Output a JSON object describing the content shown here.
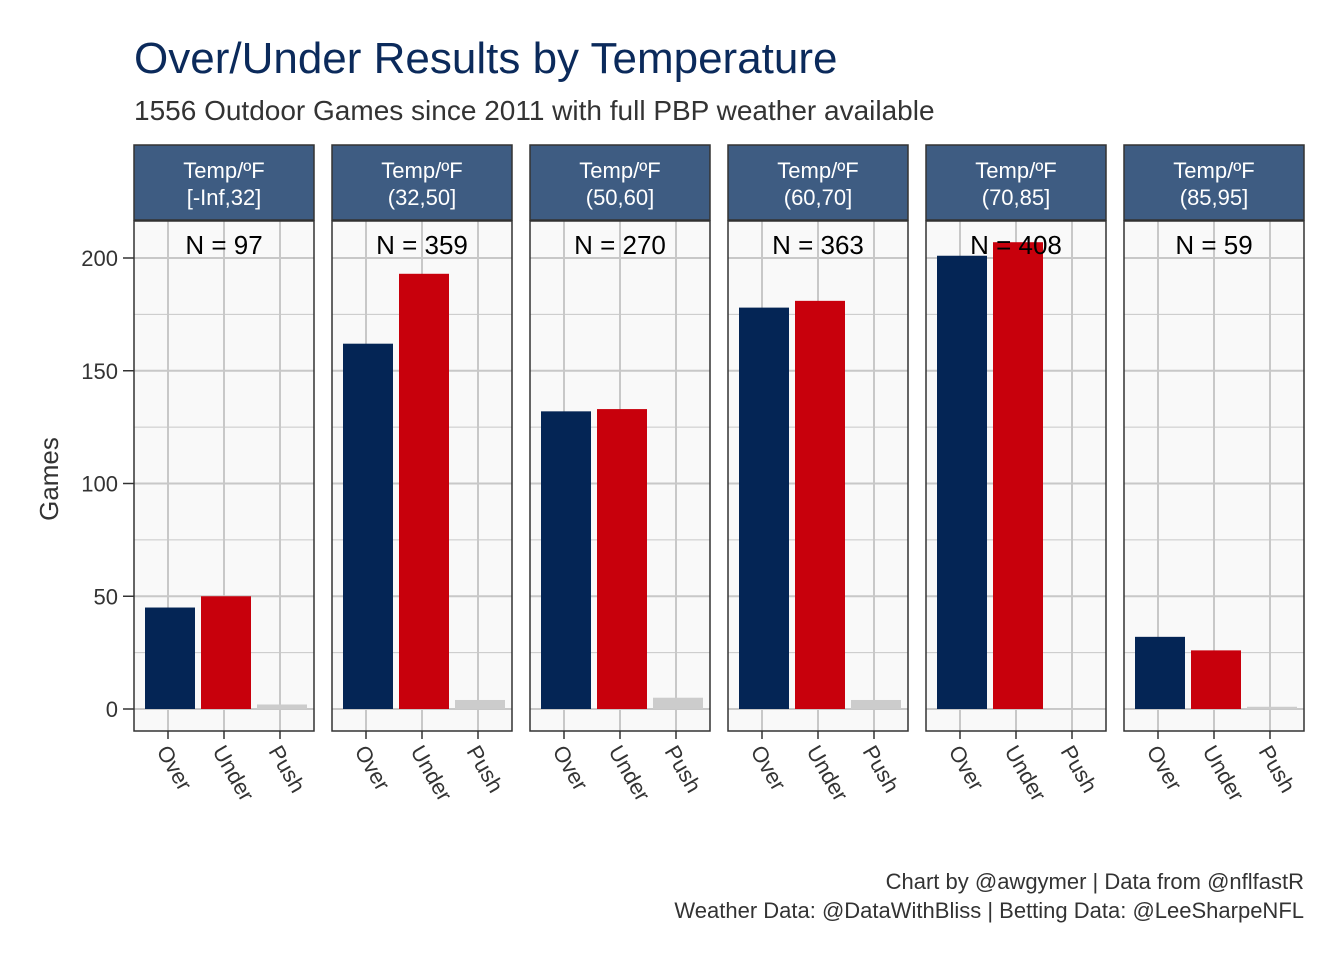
{
  "title": "Over/Under Results by Temperature",
  "subtitle": "1556 Outdoor Games since 2011 with full PBP weather available",
  "caption_line1": "Chart by @awgymer | Data from @nflfastR",
  "caption_line2": "Weather Data: @DataWithBliss | Betting Data: @LeeSharpeNFL",
  "colors": {
    "title": "#0B2A5B",
    "over": "#042555",
    "under": "#C8000C",
    "push": "#CCCCCC",
    "strip": "#3E5C82",
    "panel_bg": "#F9F9F9",
    "grid": "#C8C8C8"
  },
  "chart_data": {
    "type": "bar",
    "ylabel": "Games",
    "xlabel": "",
    "categories": [
      "Over",
      "Under",
      "Push"
    ],
    "ylim": [
      -10,
      216
    ],
    "yticks": [
      0,
      50,
      100,
      150,
      200
    ],
    "facets": [
      {
        "strip_line1": "Temp/ºF",
        "strip_line2": "[-Inf,32]",
        "n_label": "N = 97",
        "values": [
          45,
          50,
          2
        ]
      },
      {
        "strip_line1": "Temp/ºF",
        "strip_line2": "(32,50]",
        "n_label": "N = 359",
        "values": [
          162,
          193,
          4
        ]
      },
      {
        "strip_line1": "Temp/ºF",
        "strip_line2": "(50,60]",
        "n_label": "N = 270",
        "values": [
          132,
          133,
          5
        ]
      },
      {
        "strip_line1": "Temp/ºF",
        "strip_line2": "(60,70]",
        "n_label": "N = 363",
        "values": [
          178,
          181,
          4
        ]
      },
      {
        "strip_line1": "Temp/ºF",
        "strip_line2": "(70,85]",
        "n_label": "N = 408",
        "values": [
          201,
          207,
          0
        ]
      },
      {
        "strip_line1": "Temp/ºF",
        "strip_line2": "(85,95]",
        "n_label": "N = 59",
        "values": [
          32,
          26,
          1
        ]
      }
    ]
  }
}
